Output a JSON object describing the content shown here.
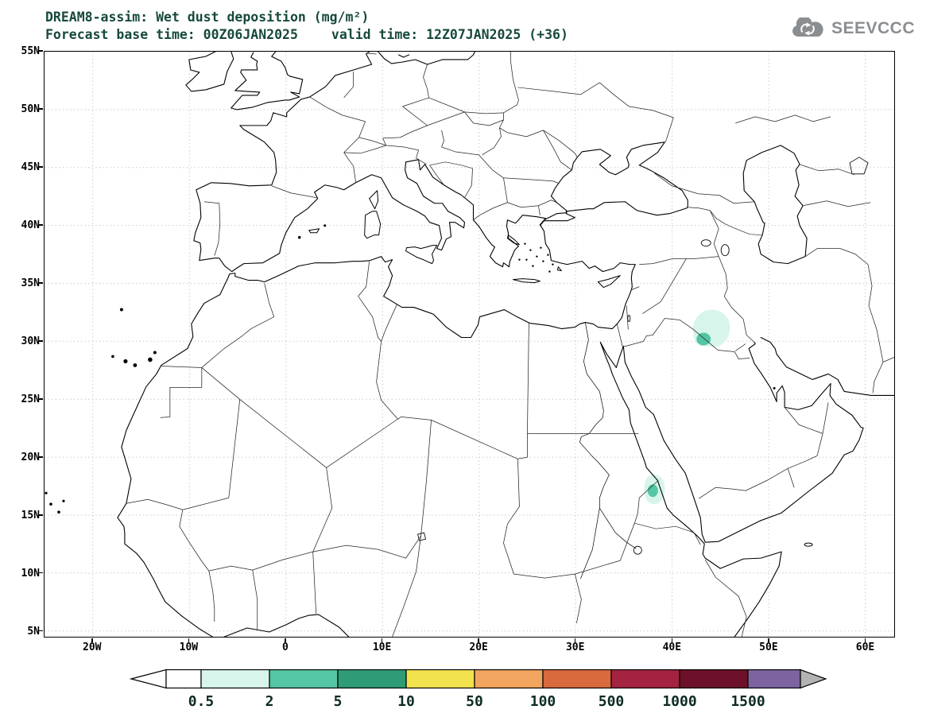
{
  "header": {
    "title": "DREAM8-assim: Wet dust deposition (mg/m²)",
    "forecast_base": "Forecast base time: 00Z06JAN2025",
    "valid_time": "valid time: 12Z07JAN2025 (+36)"
  },
  "branding": {
    "logo_text": "SEEVCCC"
  },
  "theme": {
    "title_color": "#17493d",
    "logo_color": "#8b8e91",
    "axis_label_color": "#000000",
    "colorbar_label_color": "#0d2b24",
    "grid_color": "#bfbfbf"
  },
  "axes": {
    "lat_ticks": [
      {
        "label": "55N",
        "lat": 55
      },
      {
        "label": "50N",
        "lat": 50
      },
      {
        "label": "45N",
        "lat": 45
      },
      {
        "label": "40N",
        "lat": 40
      },
      {
        "label": "35N",
        "lat": 35
      },
      {
        "label": "30N",
        "lat": 30
      },
      {
        "label": "25N",
        "lat": 25
      },
      {
        "label": "20N",
        "lat": 20
      },
      {
        "label": "15N",
        "lat": 15
      },
      {
        "label": "10N",
        "lat": 10
      },
      {
        "label": "5N",
        "lat": 5
      }
    ],
    "lon_ticks": [
      {
        "label": "20W",
        "lon": -20
      },
      {
        "label": "10W",
        "lon": -10
      },
      {
        "label": "0",
        "lon": 0
      },
      {
        "label": "10E",
        "lon": 10
      },
      {
        "label": "20E",
        "lon": 20
      },
      {
        "label": "30E",
        "lon": 30
      },
      {
        "label": "40E",
        "lon": 40
      },
      {
        "label": "50E",
        "lon": 50
      },
      {
        "label": "60E",
        "lon": 60
      }
    ]
  },
  "chart_data": {
    "type": "heatmap",
    "title": "DREAM8-assim: Wet dust deposition (mg/m²)",
    "model": "DREAM8-assim",
    "variable": "Wet dust deposition",
    "units": "mg/m²",
    "forecast_base_time": "00Z06JAN2025",
    "valid_time": "12Z07JAN2025",
    "lead_hours": 36,
    "map_extent": {
      "lon_min": -25,
      "lon_max": 63,
      "lat_min": 4.5,
      "lat_max": 55
    },
    "grid_spacing": {
      "lat_deg": 5,
      "lon_deg": 10
    },
    "colorbar": {
      "boundaries": [
        0.5,
        2,
        5,
        10,
        50,
        100,
        500,
        1000,
        1500
      ],
      "labels": [
        "0.5",
        "2",
        "5",
        "10",
        "50",
        "100",
        "500",
        "1000",
        "1500"
      ],
      "segment_colors": [
        "#d8f5ec",
        "#54c6a3",
        "#2f9b77",
        "#f2e24e",
        "#f2a55e",
        "#d96a3d",
        "#a32340",
        "#6c1129"
      ],
      "over_band_color": "#7d63a0",
      "over_arrow_color": "#b3b3b3",
      "under_arrow_color": "#ffffff"
    },
    "deposition_areas": [
      {
        "location": "central Iraq",
        "approx_lon": 44.5,
        "approx_lat": 31.5,
        "levels_mg_m2": "0.5 to 5"
      },
      {
        "location": "Eritrea / Sudan Red Sea coast",
        "approx_lon": 38.5,
        "approx_lat": 17.5,
        "levels_mg_m2": "0.5 to 5"
      }
    ]
  }
}
